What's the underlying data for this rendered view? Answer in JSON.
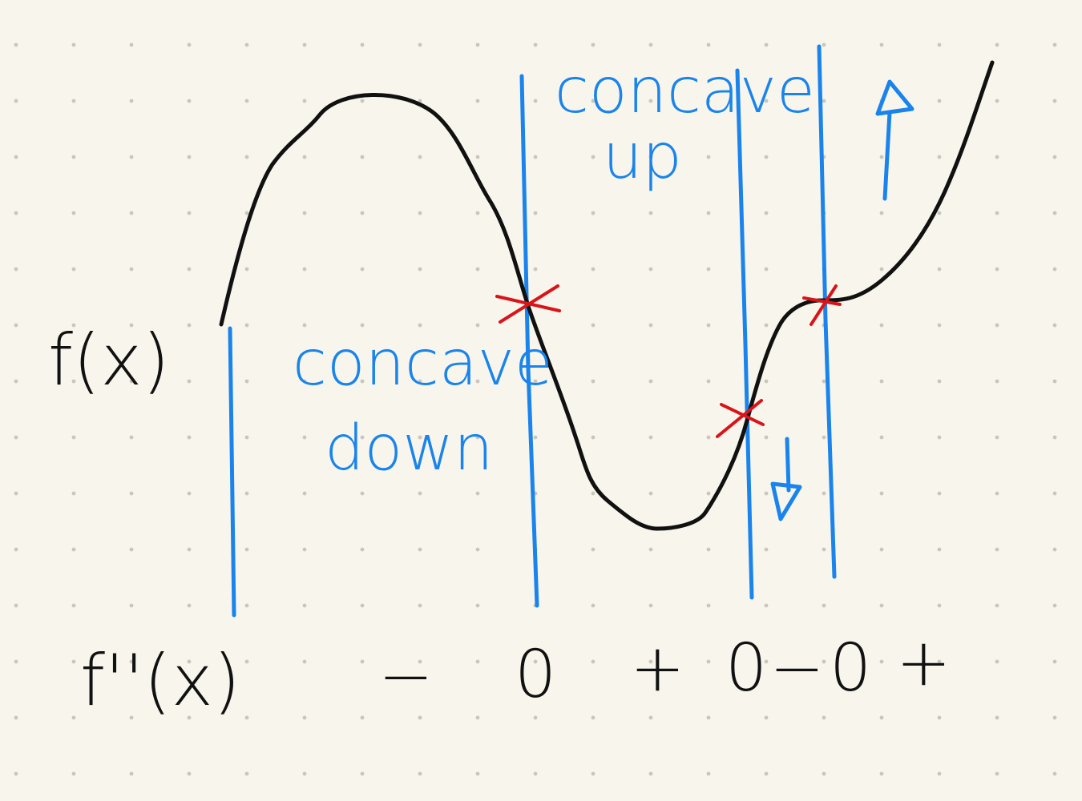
{
  "labels": {
    "f_of_x": "f(x)",
    "f_double_prime": "f''(x)",
    "concave_up_line1": "concave",
    "concave_up_line2": "up",
    "concave_down_line1": "concave",
    "concave_down_line2": "down"
  },
  "sign_chart": [
    "−",
    "0",
    "+",
    "0",
    "−",
    "0",
    "+"
  ],
  "colors": {
    "paper": "#f8f6ec",
    "grid_dot": "#c9c6bd",
    "curve": "#111111",
    "annotation": "#1a84ec",
    "inflection_mark": "#d8141a"
  },
  "icons": {
    "increasing_arrow": "up-arrow-icon",
    "decreasing_arrow": "down-arrow-icon",
    "inflection_point": "x-mark-icon"
  }
}
